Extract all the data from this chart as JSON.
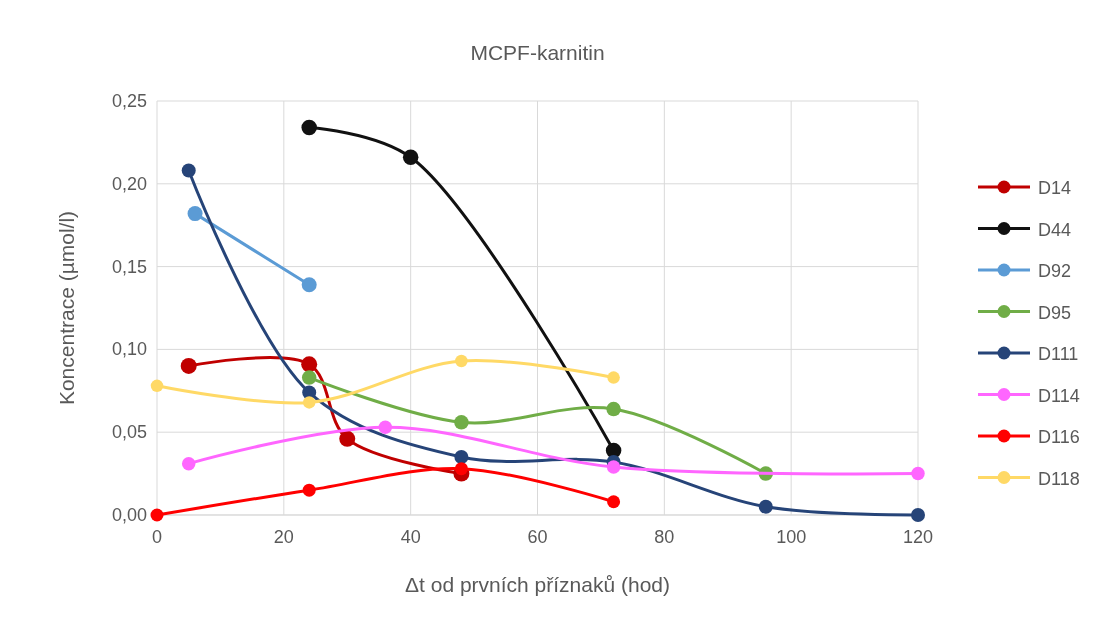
{
  "chart_data": {
    "type": "line",
    "title": "MCPF-karnitin",
    "xlabel": "Δt od prvních příznaků (hod)",
    "ylabel": "Koncentrace (µmol/l)",
    "xlim": [
      0,
      120
    ],
    "xticks": [
      0,
      20,
      40,
      60,
      80,
      100,
      120
    ],
    "ylim": [
      0,
      0.25
    ],
    "yticks": [
      {
        "value": 0,
        "label": "0,00"
      },
      {
        "value": 0.05,
        "label": "0,05"
      },
      {
        "value": 0.1,
        "label": "0,10"
      },
      {
        "value": 0.15,
        "label": "0,15"
      },
      {
        "value": 0.2,
        "label": "0,20"
      },
      {
        "value": 0.25,
        "label": "0,25"
      }
    ],
    "grid": true,
    "legend": "right",
    "marker": "circle",
    "line_style": "solid",
    "series": [
      {
        "name": "D14",
        "color": "#c00000",
        "x": [
          5,
          24,
          30,
          48
        ],
        "values": [
          0.09,
          0.091,
          0.046,
          0.025
        ]
      },
      {
        "name": "D44",
        "color": "#111111",
        "x": [
          24,
          40,
          72
        ],
        "values": [
          0.234,
          0.216,
          0.039
        ]
      },
      {
        "name": "D92",
        "color": "#5b9bd5",
        "x": [
          6,
          24
        ],
        "values": [
          0.182,
          0.139
        ]
      },
      {
        "name": "D95",
        "color": "#70ad47",
        "x": [
          24,
          48,
          72,
          96
        ],
        "values": [
          0.083,
          0.056,
          0.064,
          0.025
        ]
      },
      {
        "name": "D111",
        "color": "#264478",
        "x": [
          5,
          24,
          48,
          72,
          96,
          120
        ],
        "values": [
          0.208,
          0.074,
          0.035,
          0.032,
          0.005,
          0
        ]
      },
      {
        "name": "D114",
        "color": "#ff66ff",
        "x": [
          5,
          36,
          72,
          120
        ],
        "values": [
          0.031,
          0.053,
          0.029,
          0.025
        ]
      },
      {
        "name": "D116",
        "color": "#ff0000",
        "x": [
          0,
          24,
          48,
          72
        ],
        "values": [
          0,
          0.015,
          0.028,
          0.008
        ]
      },
      {
        "name": "D118",
        "color": "#ffd966",
        "x": [
          0,
          24,
          48,
          72
        ],
        "values": [
          0.078,
          0.068,
          0.093,
          0.083
        ]
      }
    ]
  }
}
